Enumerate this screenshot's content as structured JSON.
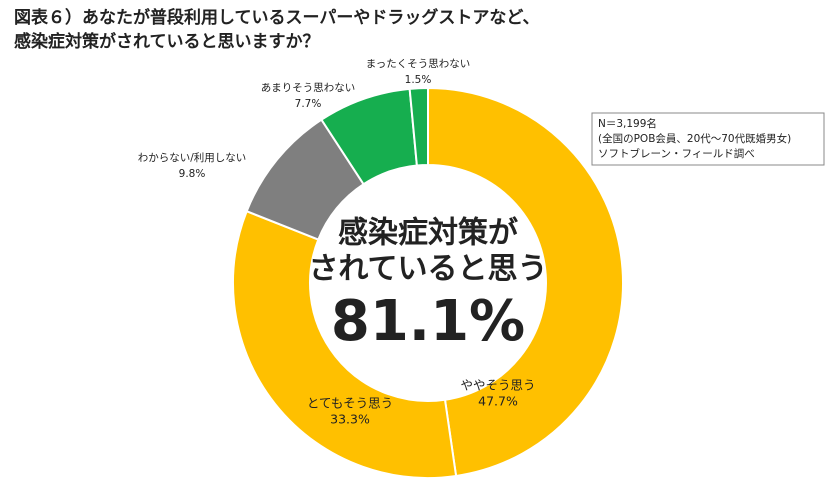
{
  "chart_data": {
    "type": "donut",
    "title": [
      "図表６）あなたが普段利用しているスーパーやドラッグストアなど、",
      "感染症対策がされていると思いますか？"
    ],
    "categories": [
      "ややそう思う",
      "とてもそう思う",
      "わからない/利用しない",
      "あまりそう思わない",
      "まったくそう思わない"
    ],
    "values": [
      47.7,
      33.3,
      9.8,
      7.7,
      1.5
    ],
    "value_labels": [
      "47.7%",
      "33.3%",
      "9.8%",
      "7.7%",
      "1.5%"
    ],
    "colors": [
      "#FFC000",
      "#FFC000",
      "#7F7F7F",
      "#16AE4F",
      "#16AE4F"
    ],
    "center_label": [
      "感染症対策が",
      "されていると思う"
    ],
    "center_value_label": "81.1%",
    "note": [
      "N＝3,199名",
      "(全国のPOB会員、20代〜70代既婚男女)",
      "ソフトブレーン・フィールド調べ"
    ]
  }
}
